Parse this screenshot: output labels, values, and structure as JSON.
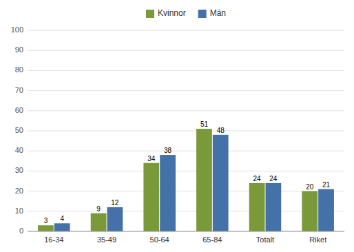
{
  "chart_data": {
    "type": "bar",
    "categories": [
      "16-34",
      "35-49",
      "50-64",
      "65-84",
      "Totalt",
      "Riket"
    ],
    "series": [
      {
        "name": "Kvinnor",
        "color": "#7a9a3a",
        "values": [
          3,
          9,
          34,
          51,
          24,
          20
        ]
      },
      {
        "name": "Män",
        "color": "#4472a8",
        "values": [
          4,
          12,
          38,
          48,
          24,
          21
        ]
      }
    ],
    "ylim": [
      0,
      100
    ],
    "yticks": [
      0,
      10,
      20,
      30,
      40,
      50,
      60,
      70,
      80,
      90,
      100
    ],
    "grid": true,
    "legend": "top",
    "data_labels": true
  }
}
